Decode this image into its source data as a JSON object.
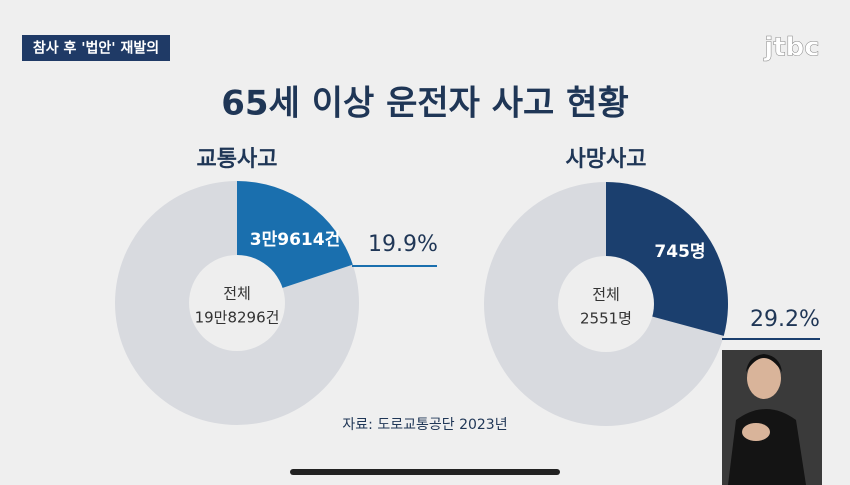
{
  "header_tag": "참사 후 '법안' 재발의",
  "logo": "jtbc",
  "title": "65세 이상 운전자 사고 현황",
  "source": "자료: 도로교통공단 2023년",
  "chart_data": [
    {
      "type": "pie",
      "title": "교통사고",
      "values": [
        19.9
      ],
      "value_labels": [
        "19.9%"
      ],
      "segment_labels": [
        "3만9614건"
      ],
      "center_labels": [
        "전체",
        "19만8296건"
      ],
      "color": "#1a6fae"
    },
    {
      "type": "pie",
      "title": "사망사고",
      "values": [
        29.2
      ],
      "value_labels": [
        "29.2%"
      ],
      "segment_labels": [
        "745명"
      ],
      "center_labels": [
        "전체",
        "2551명"
      ],
      "color": "#1b3f6e"
    }
  ]
}
